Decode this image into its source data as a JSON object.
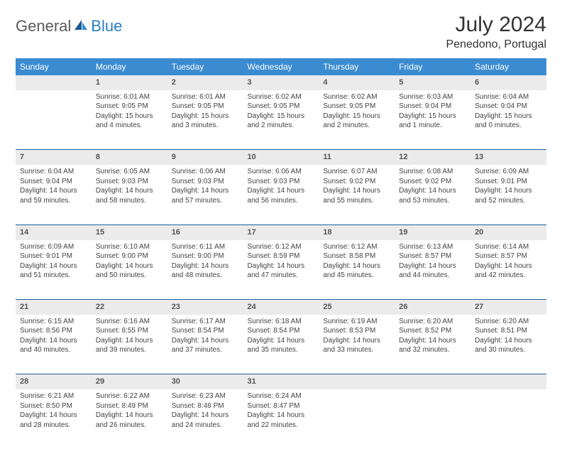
{
  "logo": {
    "text1": "General",
    "text2": "Blue"
  },
  "title": "July 2024",
  "location": "Penedono, Portugal",
  "weekdays": [
    "Sunday",
    "Monday",
    "Tuesday",
    "Wednesday",
    "Thursday",
    "Friday",
    "Saturday"
  ],
  "colors": {
    "header_bg": "#3b8bd0",
    "header_text": "#ffffff",
    "daynum_bg": "#ebebeb",
    "row_border": "#1f5f96",
    "text": "#444444",
    "logo_gray": "#5a5a5a",
    "logo_blue": "#2a7ec5"
  },
  "typography": {
    "title_fontsize": 30,
    "location_fontsize": 16,
    "weekday_fontsize": 12,
    "daynum_fontsize": 11,
    "cell_fontsize": 10
  },
  "layout": {
    "columns": 7,
    "week_rows": 5
  },
  "weeks": [
    [
      {
        "day": "",
        "lines": []
      },
      {
        "day": "1",
        "lines": [
          "Sunrise: 6:01 AM",
          "Sunset: 9:05 PM",
          "Daylight: 15 hours and 4 minutes."
        ]
      },
      {
        "day": "2",
        "lines": [
          "Sunrise: 6:01 AM",
          "Sunset: 9:05 PM",
          "Daylight: 15 hours and 3 minutes."
        ]
      },
      {
        "day": "3",
        "lines": [
          "Sunrise: 6:02 AM",
          "Sunset: 9:05 PM",
          "Daylight: 15 hours and 2 minutes."
        ]
      },
      {
        "day": "4",
        "lines": [
          "Sunrise: 6:02 AM",
          "Sunset: 9:05 PM",
          "Daylight: 15 hours and 2 minutes."
        ]
      },
      {
        "day": "5",
        "lines": [
          "Sunrise: 6:03 AM",
          "Sunset: 9:04 PM",
          "Daylight: 15 hours and 1 minute."
        ]
      },
      {
        "day": "6",
        "lines": [
          "Sunrise: 6:04 AM",
          "Sunset: 9:04 PM",
          "Daylight: 15 hours and 0 minutes."
        ]
      }
    ],
    [
      {
        "day": "7",
        "lines": [
          "Sunrise: 6:04 AM",
          "Sunset: 9:04 PM",
          "Daylight: 14 hours and 59 minutes."
        ]
      },
      {
        "day": "8",
        "lines": [
          "Sunrise: 6:05 AM",
          "Sunset: 9:03 PM",
          "Daylight: 14 hours and 58 minutes."
        ]
      },
      {
        "day": "9",
        "lines": [
          "Sunrise: 6:06 AM",
          "Sunset: 9:03 PM",
          "Daylight: 14 hours and 57 minutes."
        ]
      },
      {
        "day": "10",
        "lines": [
          "Sunrise: 6:06 AM",
          "Sunset: 9:03 PM",
          "Daylight: 14 hours and 56 minutes."
        ]
      },
      {
        "day": "11",
        "lines": [
          "Sunrise: 6:07 AM",
          "Sunset: 9:02 PM",
          "Daylight: 14 hours and 55 minutes."
        ]
      },
      {
        "day": "12",
        "lines": [
          "Sunrise: 6:08 AM",
          "Sunset: 9:02 PM",
          "Daylight: 14 hours and 53 minutes."
        ]
      },
      {
        "day": "13",
        "lines": [
          "Sunrise: 6:09 AM",
          "Sunset: 9:01 PM",
          "Daylight: 14 hours and 52 minutes."
        ]
      }
    ],
    [
      {
        "day": "14",
        "lines": [
          "Sunrise: 6:09 AM",
          "Sunset: 9:01 PM",
          "Daylight: 14 hours and 51 minutes."
        ]
      },
      {
        "day": "15",
        "lines": [
          "Sunrise: 6:10 AM",
          "Sunset: 9:00 PM",
          "Daylight: 14 hours and 50 minutes."
        ]
      },
      {
        "day": "16",
        "lines": [
          "Sunrise: 6:11 AM",
          "Sunset: 9:00 PM",
          "Daylight: 14 hours and 48 minutes."
        ]
      },
      {
        "day": "17",
        "lines": [
          "Sunrise: 6:12 AM",
          "Sunset: 8:59 PM",
          "Daylight: 14 hours and 47 minutes."
        ]
      },
      {
        "day": "18",
        "lines": [
          "Sunrise: 6:12 AM",
          "Sunset: 8:58 PM",
          "Daylight: 14 hours and 45 minutes."
        ]
      },
      {
        "day": "19",
        "lines": [
          "Sunrise: 6:13 AM",
          "Sunset: 8:57 PM",
          "Daylight: 14 hours and 44 minutes."
        ]
      },
      {
        "day": "20",
        "lines": [
          "Sunrise: 6:14 AM",
          "Sunset: 8:57 PM",
          "Daylight: 14 hours and 42 minutes."
        ]
      }
    ],
    [
      {
        "day": "21",
        "lines": [
          "Sunrise: 6:15 AM",
          "Sunset: 8:56 PM",
          "Daylight: 14 hours and 40 minutes."
        ]
      },
      {
        "day": "22",
        "lines": [
          "Sunrise: 6:16 AM",
          "Sunset: 8:55 PM",
          "Daylight: 14 hours and 39 minutes."
        ]
      },
      {
        "day": "23",
        "lines": [
          "Sunrise: 6:17 AM",
          "Sunset: 8:54 PM",
          "Daylight: 14 hours and 37 minutes."
        ]
      },
      {
        "day": "24",
        "lines": [
          "Sunrise: 6:18 AM",
          "Sunset: 8:54 PM",
          "Daylight: 14 hours and 35 minutes."
        ]
      },
      {
        "day": "25",
        "lines": [
          "Sunrise: 6:19 AM",
          "Sunset: 8:53 PM",
          "Daylight: 14 hours and 33 minutes."
        ]
      },
      {
        "day": "26",
        "lines": [
          "Sunrise: 6:20 AM",
          "Sunset: 8:52 PM",
          "Daylight: 14 hours and 32 minutes."
        ]
      },
      {
        "day": "27",
        "lines": [
          "Sunrise: 6:20 AM",
          "Sunset: 8:51 PM",
          "Daylight: 14 hours and 30 minutes."
        ]
      }
    ],
    [
      {
        "day": "28",
        "lines": [
          "Sunrise: 6:21 AM",
          "Sunset: 8:50 PM",
          "Daylight: 14 hours and 28 minutes."
        ]
      },
      {
        "day": "29",
        "lines": [
          "Sunrise: 6:22 AM",
          "Sunset: 8:49 PM",
          "Daylight: 14 hours and 26 minutes."
        ]
      },
      {
        "day": "30",
        "lines": [
          "Sunrise: 6:23 AM",
          "Sunset: 8:48 PM",
          "Daylight: 14 hours and 24 minutes."
        ]
      },
      {
        "day": "31",
        "lines": [
          "Sunrise: 6:24 AM",
          "Sunset: 8:47 PM",
          "Daylight: 14 hours and 22 minutes."
        ]
      },
      {
        "day": "",
        "lines": []
      },
      {
        "day": "",
        "lines": []
      },
      {
        "day": "",
        "lines": []
      }
    ]
  ]
}
